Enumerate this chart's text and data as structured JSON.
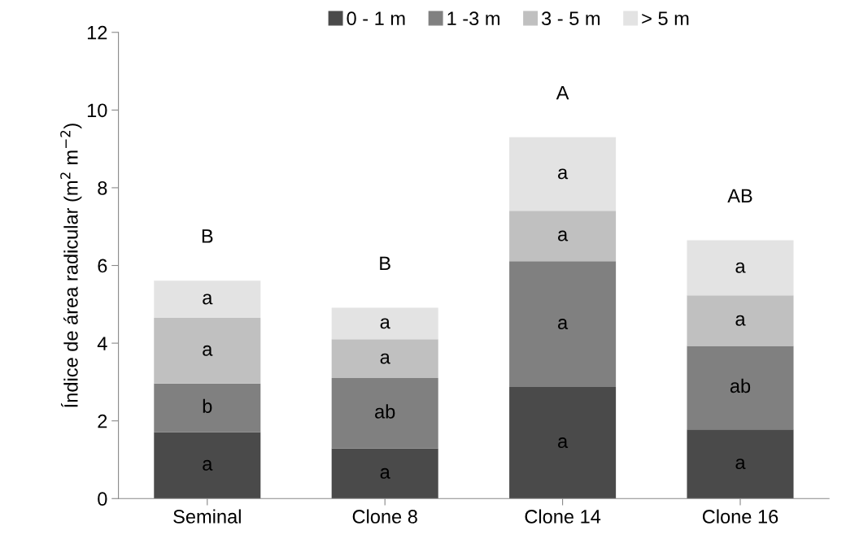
{
  "chart_data": {
    "type": "bar",
    "stacked": true,
    "ylabel": "Índice de área radicular (m$^{2}$ m$^{−2}$)",
    "categories": [
      "Seminal",
      "Clone 8",
      "Clone 14",
      "Clone 16"
    ],
    "series": [
      {
        "name": "0 - 1 m",
        "color": "#4a4a4a",
        "values": [
          1.71,
          1.29,
          2.87,
          1.78
        ],
        "value_labels": [
          "a",
          "a",
          "a",
          "a"
        ]
      },
      {
        "name": "1 -3 m",
        "color": "#808080",
        "values": [
          1.25,
          1.81,
          3.24,
          2.15
        ],
        "value_labels": [
          "b",
          "ab",
          "a",
          "ab"
        ]
      },
      {
        "name": "3 - 5 m",
        "color": "#c0c0c0",
        "values": [
          1.69,
          1.0,
          1.3,
          1.3
        ],
        "value_labels": [
          "a",
          "a",
          "a",
          "a"
        ]
      },
      {
        "name": "> 5 m",
        "color": "#e3e3e3",
        "values": [
          0.96,
          0.81,
          1.89,
          1.42
        ],
        "value_labels": [
          "a",
          "a",
          "a",
          "a"
        ]
      }
    ],
    "annotations": [
      {
        "text": "B",
        "x": "Seminal",
        "y": 5.61
      },
      {
        "text": "B",
        "x": "Clone 8",
        "y": 4.91
      },
      {
        "text": "A",
        "x": "Clone 14",
        "y": 9.3
      },
      {
        "text": "AB",
        "x": "Clone 16",
        "y": 6.65
      }
    ],
    "ylim": [
      0,
      12
    ],
    "yticks": [
      0,
      2,
      4,
      6,
      8,
      10,
      12
    ],
    "grid": false,
    "legend": "top"
  }
}
